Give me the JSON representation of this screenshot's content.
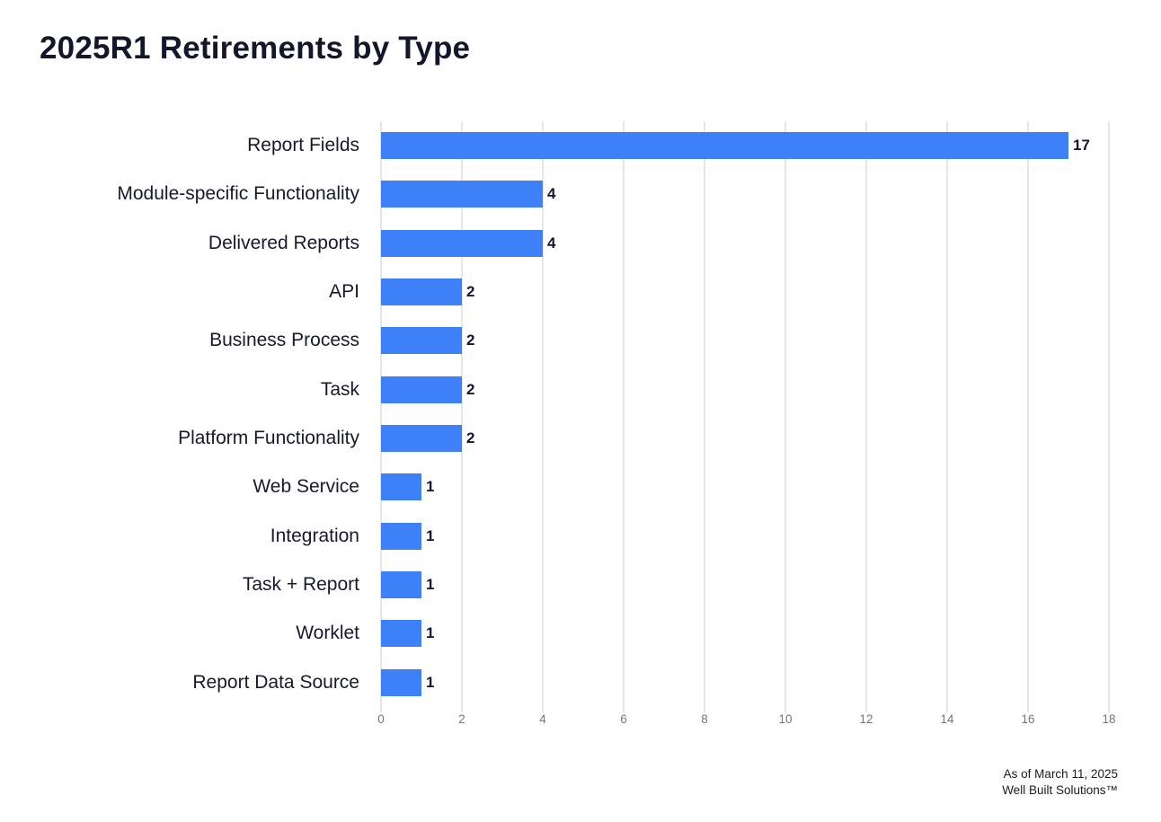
{
  "page": {
    "footer": {
      "line1": "As of March 11, 2025",
      "line2": "Well Built Solutions™"
    }
  },
  "chart_data": {
    "type": "bar",
    "orientation": "horizontal",
    "title": "2025R1 Retirements by Type",
    "categories": [
      "Report Fields",
      "Module-specific Functionality",
      "Delivered Reports",
      "API",
      "Business Process",
      "Task",
      "Platform Functionality",
      "Web Service",
      "Integration",
      "Task + Report",
      "Worklet",
      "Report Data Source"
    ],
    "values": [
      17,
      4,
      4,
      2,
      2,
      2,
      2,
      1,
      1,
      1,
      1,
      1
    ],
    "data_labels_shown": true,
    "xlabel": "",
    "ylabel": "",
    "xlim": [
      0,
      18
    ],
    "x_ticks": [
      0,
      2,
      4,
      6,
      8,
      10,
      12,
      14,
      16,
      18
    ],
    "grid": "vertical",
    "legend": "none",
    "bar_color": "#3d80f7",
    "category_label_color": "#171a2e",
    "value_label_color": "#14172b",
    "tick_label_color": "#757575",
    "gridline_color": "#e6e6e6",
    "background_color": "#ffffff"
  }
}
